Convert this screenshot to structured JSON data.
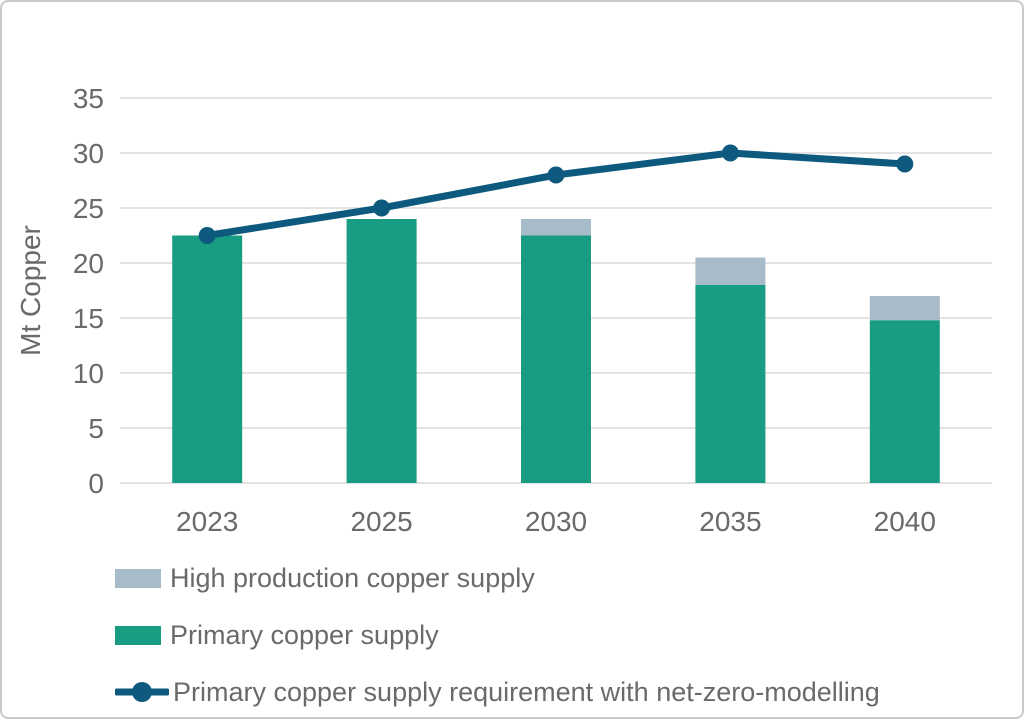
{
  "chart_data": {
    "type": "combo: stacked bar + line",
    "categories": [
      "2023",
      "2025",
      "2030",
      "2035",
      "2040"
    ],
    "series": [
      {
        "name": "Primary copper supply",
        "type": "bar",
        "color": "#199d82",
        "values": [
          22.5,
          24,
          22.5,
          18,
          14.8
        ]
      },
      {
        "name": "High production copper supply",
        "type": "bar",
        "color": "#a7bbc8",
        "values": [
          0,
          0,
          1.5,
          2.5,
          2.2
        ],
        "stack_totals": [
          22.5,
          24,
          24,
          20.5,
          17
        ]
      },
      {
        "name": "Primary copper supply requirement with net-zero-modelling",
        "type": "line",
        "color": "#0d5a7e",
        "values": [
          22.5,
          25,
          28,
          30,
          29
        ]
      }
    ],
    "title": "",
    "xlabel": "",
    "ylabel": "Mt Copper",
    "ylim": [
      0,
      35
    ],
    "yticks": [
      0,
      5,
      10,
      15,
      20,
      25,
      30,
      35
    ],
    "grid": true,
    "legend_position": "bottom-left"
  },
  "legend": {
    "items": [
      {
        "label": "High production copper supply",
        "marker": "rect",
        "color": "#a7bbc8"
      },
      {
        "label": "Primary copper supply",
        "marker": "rect",
        "color": "#199d82"
      },
      {
        "label": "Primary copper supply requirement with net-zero-modelling",
        "marker": "line-dot",
        "color": "#0d5a7e"
      }
    ]
  },
  "styles": {
    "grid_color": "#e3e3e3",
    "axis_text_color": "#6a6a6a",
    "canvas_border_color": "#c9c9c9",
    "background": "#ffffff"
  }
}
